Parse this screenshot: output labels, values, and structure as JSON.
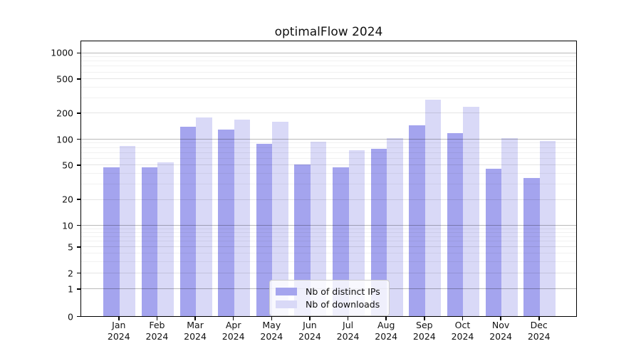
{
  "title": "optimalFlow 2024",
  "legend": {
    "items": [
      {
        "label": "Nb of distinct IPs",
        "color": "#a4a4ee"
      },
      {
        "label": "Nb of downloads",
        "color": "#d9d9f7"
      }
    ]
  },
  "y_axis": {
    "tick_labels": [
      "1000",
      "500",
      "200",
      "100",
      "50",
      "20",
      "10",
      "5",
      "2",
      "1",
      "0"
    ]
  },
  "x_axis": {
    "ticks": [
      {
        "month": "Jan",
        "year": "2024"
      },
      {
        "month": "Feb",
        "year": "2024"
      },
      {
        "month": "Mar",
        "year": "2024"
      },
      {
        "month": "Apr",
        "year": "2024"
      },
      {
        "month": "May",
        "year": "2024"
      },
      {
        "month": "Jun",
        "year": "2024"
      },
      {
        "month": "Jul",
        "year": "2024"
      },
      {
        "month": "Aug",
        "year": "2024"
      },
      {
        "month": "Sep",
        "year": "2024"
      },
      {
        "month": "Oct",
        "year": "2024"
      },
      {
        "month": "Nov",
        "year": "2024"
      },
      {
        "month": "Dec",
        "year": "2024"
      }
    ]
  },
  "chart_data": {
    "type": "bar",
    "title": "optimalFlow 2024",
    "categories": [
      "Jan 2024",
      "Feb 2024",
      "Mar 2024",
      "Apr 2024",
      "May 2024",
      "Jun 2024",
      "Jul 2024",
      "Aug 2024",
      "Sep 2024",
      "Oct 2024",
      "Nov 2024",
      "Dec 2024"
    ],
    "series": [
      {
        "name": "Nb of distinct IPs",
        "color": "#a4a4ee",
        "values": [
          48,
          48,
          140,
          132,
          89,
          52,
          48,
          78,
          146,
          120,
          46,
          36
        ]
      },
      {
        "name": "Nb of downloads",
        "color": "#d9d9f7",
        "values": [
          85,
          55,
          180,
          172,
          160,
          94,
          75,
          105,
          290,
          240,
          104,
          97
        ]
      }
    ],
    "yscale": "symlog",
    "yticks": [
      0,
      1,
      2,
      5,
      10,
      20,
      50,
      100,
      200,
      500,
      1000
    ],
    "minor_yticks": [
      3,
      4,
      6,
      7,
      8,
      9,
      30,
      40,
      60,
      70,
      80,
      90,
      300,
      400,
      600,
      700,
      800,
      900
    ],
    "ylim": [
      0,
      1390
    ],
    "grid": true,
    "grid_over_bars": true,
    "legend_position": "lower center"
  }
}
